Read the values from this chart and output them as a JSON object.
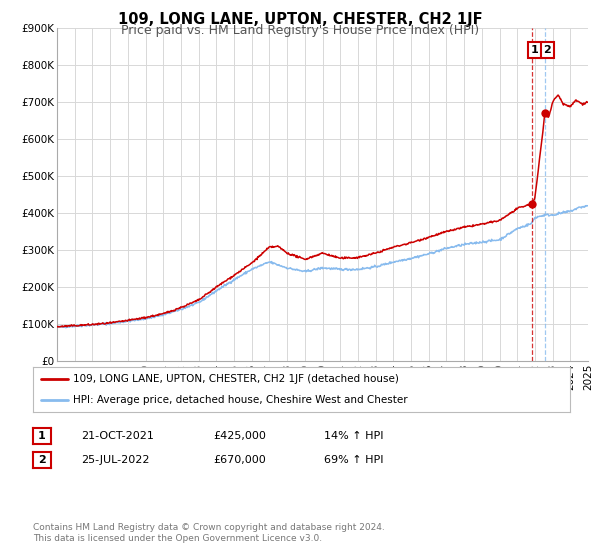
{
  "title": "109, LONG LANE, UPTON, CHESTER, CH2 1JF",
  "subtitle": "Price paid vs. HM Land Registry's House Price Index (HPI)",
  "xlim": [
    1995,
    2025
  ],
  "ylim": [
    0,
    900000
  ],
  "yticks": [
    0,
    100000,
    200000,
    300000,
    400000,
    500000,
    600000,
    700000,
    800000,
    900000
  ],
  "ytick_labels": [
    "£0",
    "£100K",
    "£200K",
    "£300K",
    "£400K",
    "£500K",
    "£600K",
    "£700K",
    "£800K",
    "£900K"
  ],
  "background_color": "#ffffff",
  "grid_color": "#d8d8d8",
  "hpi_color": "#88bbee",
  "price_color": "#cc0000",
  "sale1_date": 2021.81,
  "sale1_price": 425000,
  "sale2_date": 2022.56,
  "sale2_price": 670000,
  "vline_x": 2021.81,
  "legend_label1": "109, LONG LANE, UPTON, CHESTER, CH2 1JF (detached house)",
  "legend_label2": "HPI: Average price, detached house, Cheshire West and Chester",
  "table_row1": [
    "1",
    "21-OCT-2021",
    "£425,000",
    "14% ↑ HPI"
  ],
  "table_row2": [
    "2",
    "25-JUL-2022",
    "£670,000",
    "69% ↑ HPI"
  ],
  "footnote1": "Contains HM Land Registry data © Crown copyright and database right 2024.",
  "footnote2": "This data is licensed under the Open Government Licence v3.0.",
  "title_fontsize": 10.5,
  "subtitle_fontsize": 9,
  "tick_fontsize": 7.5,
  "legend_fontsize": 7.5,
  "table_fontsize": 8,
  "footnote_fontsize": 6.5
}
